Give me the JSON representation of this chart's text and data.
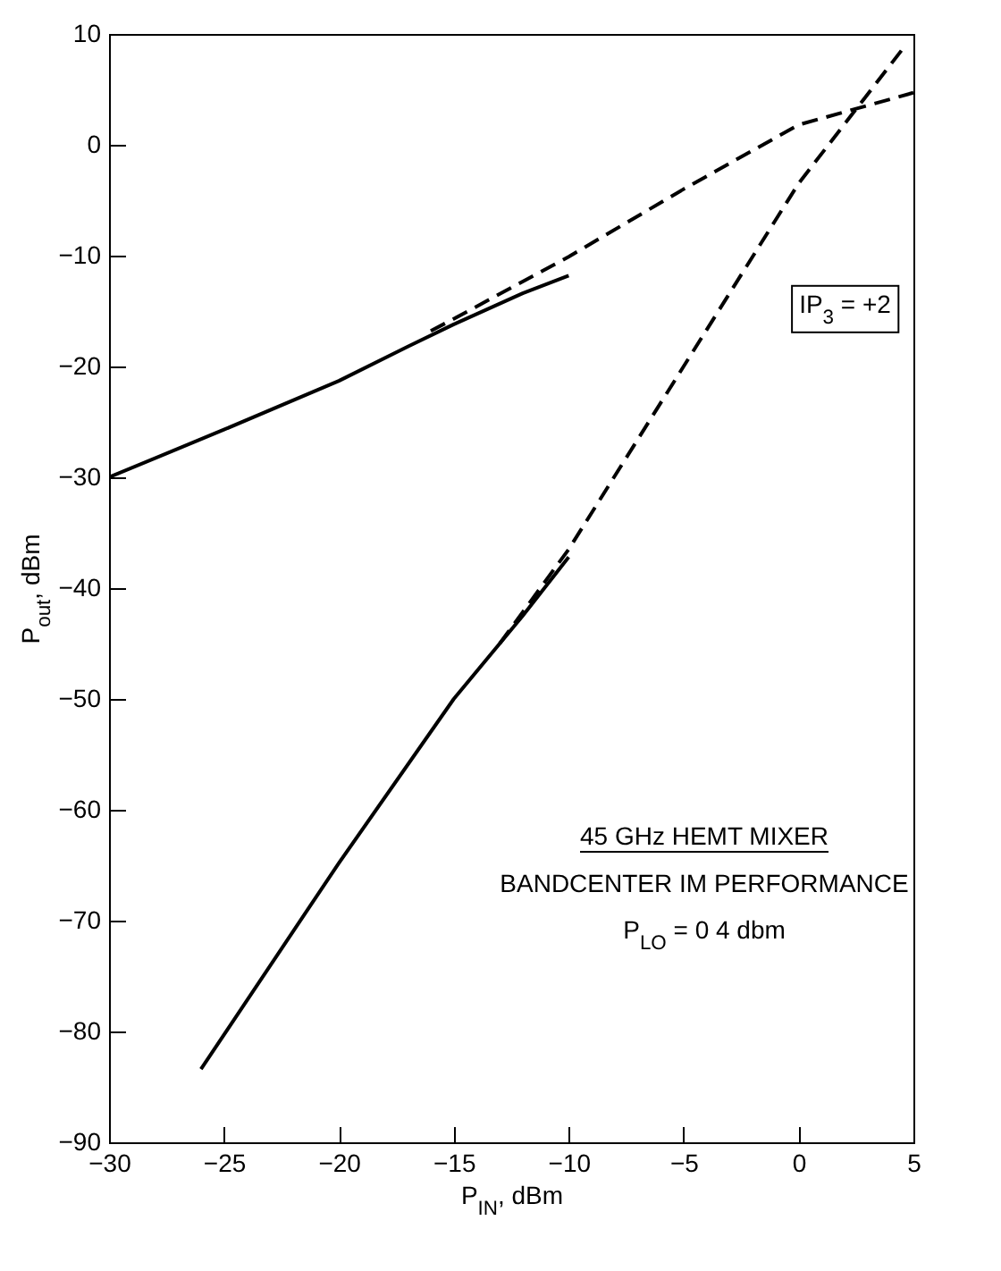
{
  "chart_data": {
    "type": "line",
    "xlabel": "P$_{IN}$, dBm",
    "ylabel": "P$_{out}$, dBm",
    "xlim": [
      -30,
      5
    ],
    "xticks": [
      -30,
      -25,
      -20,
      -15,
      -10,
      -5,
      0,
      5
    ],
    "ylim": [
      -90,
      10
    ],
    "yticks": [
      -90,
      -80,
      -70,
      -60,
      -50,
      -40,
      -30,
      -20,
      -10,
      0,
      10
    ],
    "grid": false,
    "marker": "none",
    "series": [
      {
        "color": "#000000",
        "line_style": "solid",
        "x": [
          -30,
          -25,
          -20,
          -17,
          -15,
          -12,
          -10
        ],
        "values": [
          -30,
          -25.7,
          -21.3,
          -18.2,
          -16.2,
          -13.4,
          -11.8
        ]
      },
      {
        "color": "#000000",
        "line_style": "dashed",
        "x": [
          -16,
          -15,
          -10,
          -5,
          0,
          5
        ],
        "values": [
          -16.8,
          -15.7,
          -10.1,
          -4,
          1.8,
          4.7
        ]
      },
      {
        "color": "#000000",
        "line_style": "solid",
        "x": [
          -26,
          -20,
          -15,
          -12,
          -10
        ],
        "values": [
          -83.4,
          -64.8,
          -50,
          -42.5,
          -37.2
        ]
      },
      {
        "color": "#000000",
        "line_style": "dashed",
        "x": [
          -13,
          -10,
          -5,
          0,
          4.7
        ],
        "values": [
          -45,
          -36.5,
          -20,
          -3.5,
          9.1
        ]
      }
    ],
    "annotations": [
      "IP$_{3}$ = +2",
      "45 GHz HEMT MIXER",
      "BANDCENTER IM PERFORMANCE",
      "P$_{LO}$ = 0 4 dbm"
    ]
  }
}
